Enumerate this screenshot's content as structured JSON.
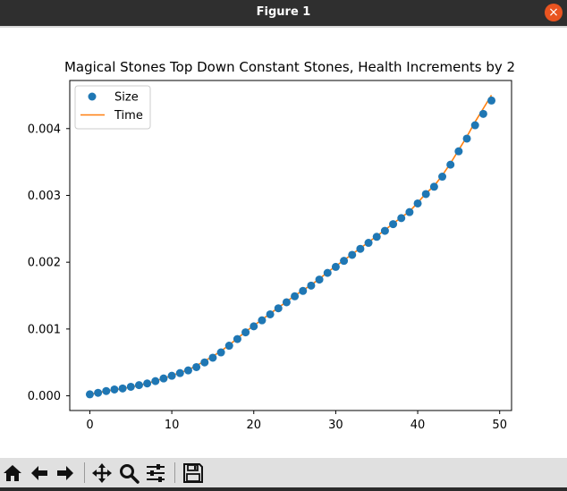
{
  "window": {
    "title": "Figure 1",
    "close_glyph": "×"
  },
  "toolbar": {
    "buttons": [
      {
        "name": "home-button",
        "icon": "home-icon"
      },
      {
        "name": "back-button",
        "icon": "back-arrow-icon"
      },
      {
        "name": "forward-button",
        "icon": "forward-arrow-icon"
      },
      {
        "name": "pan-button",
        "icon": "pan-move-icon"
      },
      {
        "name": "zoom-button",
        "icon": "zoom-magnifier-icon"
      },
      {
        "name": "configure-subplots-button",
        "icon": "sliders-icon"
      },
      {
        "name": "save-button",
        "icon": "floppy-disk-icon"
      }
    ]
  },
  "chart_data": {
    "type": "scatter",
    "title": "Magical Stones Top Down Constant Stones, Health Increments by 2",
    "xlabel": "",
    "ylabel": "",
    "xlim": [
      -2.45,
      51.45
    ],
    "ylim": [
      -0.00022,
      0.00472
    ],
    "xticks": [
      0,
      10,
      20,
      30,
      40,
      50
    ],
    "yticks": [
      0.0,
      0.001,
      0.002,
      0.003,
      0.004
    ],
    "ytick_labels": [
      "0.000",
      "0.001",
      "0.002",
      "0.003",
      "0.004"
    ],
    "legend": {
      "placement": "top-left"
    },
    "grid": false,
    "colors": {
      "size": "#1f77b4",
      "time": "#ff7f0e"
    },
    "series": [
      {
        "name": "Size",
        "kind": "scatter",
        "x": [
          0,
          1,
          2,
          3,
          4,
          5,
          6,
          7,
          8,
          9,
          10,
          11,
          12,
          13,
          14,
          15,
          16,
          17,
          18,
          19,
          20,
          21,
          22,
          23,
          24,
          25,
          26,
          27,
          28,
          29,
          30,
          31,
          32,
          33,
          34,
          35,
          36,
          37,
          38,
          39,
          40,
          41,
          42,
          43,
          44,
          45,
          46,
          47,
          48,
          49
        ],
        "values": [
          2.2e-05,
          4.5e-05,
          7.2e-05,
          9.5e-05,
          0.00011,
          0.000135,
          0.00016,
          0.000185,
          0.00022,
          0.00026,
          0.0003,
          0.00034,
          0.00038,
          0.00043,
          0.0005,
          0.00057,
          0.00065,
          0.00075,
          0.00085,
          0.00095,
          0.00104,
          0.00113,
          0.00122,
          0.00131,
          0.0014,
          0.00149,
          0.00157,
          0.00165,
          0.00174,
          0.00184,
          0.00193,
          0.00202,
          0.00211,
          0.0022,
          0.00229,
          0.00238,
          0.00247,
          0.00257,
          0.00266,
          0.00275,
          0.00288,
          0.00302,
          0.00313,
          0.00328,
          0.00346,
          0.00366,
          0.00385,
          0.00405,
          0.00422,
          0.00442
        ]
      },
      {
        "name": "Time",
        "kind": "line",
        "x": [
          0,
          1,
          2,
          3,
          4,
          5,
          6,
          7,
          8,
          9,
          10,
          11,
          12,
          13,
          14,
          15,
          16,
          17,
          18,
          19,
          20,
          21,
          22,
          23,
          24,
          25,
          26,
          27,
          28,
          29,
          30,
          31,
          32,
          33,
          34,
          35,
          36,
          37,
          38,
          39,
          40,
          41,
          42,
          43,
          44,
          45,
          46,
          47,
          48,
          49
        ],
        "values": [
          2e-05,
          4.5e-05,
          7e-05,
          9e-05,
          0.000108,
          0.00013,
          0.000158,
          0.000186,
          0.000222,
          0.000262,
          0.000302,
          0.000345,
          0.00039,
          0.00045,
          0.00052,
          0.00059,
          0.00067,
          0.00076,
          0.00086,
          0.00096,
          0.00105,
          0.00114,
          0.00123,
          0.00132,
          0.00141,
          0.0015,
          0.00158,
          0.00166,
          0.00175,
          0.00185,
          0.00194,
          0.00203,
          0.00212,
          0.00221,
          0.0023,
          0.00239,
          0.00248,
          0.00258,
          0.00267,
          0.00276,
          0.00289,
          0.00303,
          0.00314,
          0.0033,
          0.00348,
          0.00368,
          0.00388,
          0.0041,
          0.0043,
          0.0045
        ]
      }
    ]
  }
}
